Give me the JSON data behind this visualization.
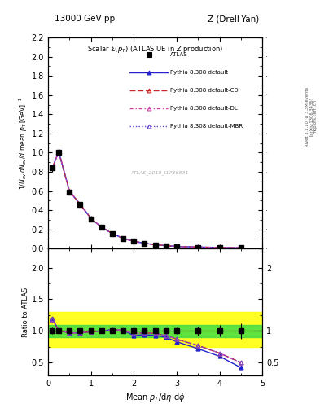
{
  "title_top": "13000 GeV pp",
  "title_right": "Z (Drell-Yan)",
  "plot_title": "Scalar $\\Sigma(p_T)$ (ATLAS UE in $Z$ production)",
  "ylabel_main": "1/N_{ev} dN_{ev}/d mean p_{T} [GeV]$^{-1}$",
  "ylabel_ratio": "Ratio to ATLAS",
  "xlabel": "Mean $p_T$/d$\\eta$ d$\\phi$",
  "watermark": "ATLAS_2019_I1736531",
  "rivet_text": "Rivet 3.1.10, ≥ 3.3M events",
  "arxiv_text": "[arXiv:1306.3436]",
  "mcplots_text": "mcplots.cern.ch",
  "x_pts": [
    0.1,
    0.25,
    0.5,
    0.75,
    1.0,
    1.25,
    1.5,
    1.75,
    2.0,
    2.25,
    2.5,
    2.75,
    3.0,
    3.5,
    4.0,
    4.5
  ],
  "y_atlas": [
    0.84,
    1.0,
    0.59,
    0.46,
    0.31,
    0.222,
    0.155,
    0.107,
    0.075,
    0.055,
    0.04,
    0.03,
    0.022,
    0.015,
    0.012,
    0.008
  ],
  "y_atlas_err": [
    0.04,
    0.02,
    0.015,
    0.015,
    0.01,
    0.008,
    0.007,
    0.005,
    0.004,
    0.003,
    0.003,
    0.002,
    0.002,
    0.0015,
    0.001,
    0.001
  ],
  "x_mc": [
    0.1,
    0.25,
    0.5,
    0.75,
    1.0,
    1.25,
    1.5,
    1.75,
    2.0,
    2.25,
    2.5,
    2.75,
    3.0,
    3.5,
    4.0,
    4.5
  ],
  "y_default": [
    0.84,
    1.01,
    0.6,
    0.462,
    0.315,
    0.223,
    0.157,
    0.107,
    0.076,
    0.056,
    0.041,
    0.031,
    0.023,
    0.016,
    0.012,
    0.008
  ],
  "y_cd": [
    0.84,
    1.01,
    0.6,
    0.462,
    0.315,
    0.223,
    0.157,
    0.107,
    0.076,
    0.056,
    0.041,
    0.031,
    0.023,
    0.016,
    0.012,
    0.0082
  ],
  "y_dl": [
    0.84,
    1.01,
    0.6,
    0.462,
    0.315,
    0.223,
    0.157,
    0.107,
    0.076,
    0.056,
    0.041,
    0.031,
    0.023,
    0.016,
    0.012,
    0.0082
  ],
  "y_mbr": [
    0.84,
    1.01,
    0.6,
    0.462,
    0.315,
    0.223,
    0.157,
    0.107,
    0.076,
    0.056,
    0.041,
    0.031,
    0.023,
    0.016,
    0.012,
    0.0082
  ],
  "r_default": [
    1.2,
    1.01,
    0.97,
    0.97,
    0.99,
    1.0,
    1.02,
    1.01,
    0.93,
    0.94,
    0.93,
    0.9,
    0.83,
    0.72,
    0.6,
    0.42
  ],
  "r_cd": [
    1.19,
    1.01,
    0.97,
    0.97,
    0.99,
    1.0,
    1.02,
    1.01,
    0.96,
    0.97,
    0.96,
    0.93,
    0.87,
    0.77,
    0.65,
    0.5
  ],
  "r_dl": [
    1.19,
    1.01,
    0.97,
    0.97,
    0.99,
    1.0,
    1.02,
    1.01,
    0.96,
    0.97,
    0.96,
    0.93,
    0.87,
    0.77,
    0.65,
    0.5
  ],
  "r_mbr": [
    1.19,
    1.01,
    0.97,
    0.97,
    0.99,
    1.0,
    1.02,
    1.01,
    0.96,
    0.97,
    0.96,
    0.93,
    0.87,
    0.77,
    0.65,
    0.5
  ],
  "r_err": [
    0.05,
    0.02,
    0.02,
    0.02,
    0.02,
    0.02,
    0.02,
    0.02,
    0.03,
    0.03,
    0.04,
    0.04,
    0.05,
    0.07,
    0.09,
    0.12
  ],
  "color_default": "#2222cc",
  "color_cd": "#cc2222",
  "color_dl": "#cc44aa",
  "color_mbr": "#6644cc",
  "color_atlas": "#000000",
  "ylim_main": [
    0.0,
    2.2
  ],
  "ylim_ratio": [
    0.3,
    2.3
  ],
  "xlim": [
    0.0,
    5.0
  ],
  "green_band": [
    0.9,
    1.1
  ],
  "yellow_band": [
    0.75,
    1.3
  ]
}
